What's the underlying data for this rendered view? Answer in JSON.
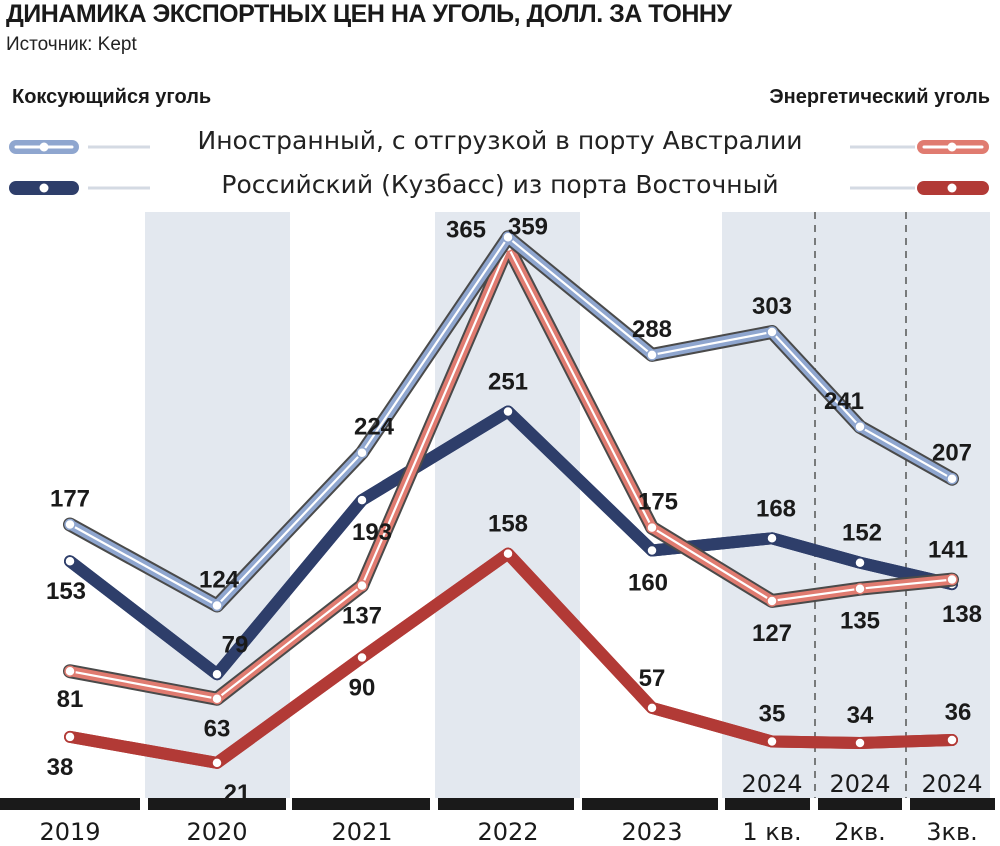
{
  "header": {
    "title": "ДИНАМИКА ЭКСПОРТНЫХ ЦЕН НА УГОЛЬ, ДОЛЛ. ЗА ТОННУ",
    "source": "Источник: Kept"
  },
  "legend": {
    "left_group": "Коксующийся уголь",
    "right_group": "Энергетический уголь",
    "rows": [
      {
        "label": "Иностранный, с отгрузкой в порту Австралии"
      },
      {
        "label": "Российский (Кузбасс) из порта Восточный"
      }
    ]
  },
  "colors": {
    "coking_foreign": "#8fa6cf",
    "coking_russian": "#2e3e6a",
    "thermal_foreign": "#e07b70",
    "thermal_russian": "#b23a36",
    "shade": "#e3e8ef",
    "axis": "#1a1a1a"
  },
  "chart_data": {
    "type": "line",
    "categories": [
      "2019",
      "2020",
      "2021",
      "2022",
      "2023",
      "2024 1 кв.",
      "2024 2кв.",
      "2024 3кв."
    ],
    "x_tick_labels": [
      {
        "line1": "",
        "line2": "2019"
      },
      {
        "line1": "",
        "line2": "2020"
      },
      {
        "line1": "",
        "line2": "2021"
      },
      {
        "line1": "",
        "line2": "2022"
      },
      {
        "line1": "",
        "line2": "2023"
      },
      {
        "line1": "2024",
        "line2": "1 кв."
      },
      {
        "line1": "2024",
        "line2": "2кв."
      },
      {
        "line1": "2024",
        "line2": "3кв."
      }
    ],
    "ylim": [
      0,
      380
    ],
    "series": [
      {
        "name": "Коксующийся уголь — Иностранный, с отгрузкой в порту Австралии",
        "key": "coking_foreign",
        "values": [
          177,
          124,
          224,
          365,
          288,
          303,
          241,
          207
        ]
      },
      {
        "name": "Коксующийся уголь — Российский (Кузбасс) из порта Восточный",
        "key": "coking_russian",
        "values": [
          153,
          79,
          193,
          251,
          160,
          168,
          152,
          138
        ]
      },
      {
        "name": "Энергетический уголь — Иностранный, с отгрузкой в порту Австралии",
        "key": "thermal_foreign",
        "values": [
          81,
          63,
          137,
          359,
          175,
          127,
          135,
          141
        ]
      },
      {
        "name": "Энергетический уголь — Российский (Кузбасс) из порта Восточный",
        "key": "thermal_russian",
        "values": [
          38,
          21,
          90,
          158,
          57,
          35,
          34,
          36
        ]
      }
    ],
    "data_labels": [
      {
        "series": "coking_foreign",
        "values": [
          "177",
          "124",
          "224",
          "365",
          "288",
          "303",
          "241",
          "207"
        ]
      },
      {
        "series": "coking_russian",
        "values": [
          "153",
          "79",
          "193",
          "251",
          "160",
          "168",
          "152",
          "138"
        ]
      },
      {
        "series": "thermal_foreign",
        "values": [
          "81",
          "63",
          "137",
          "359",
          "175",
          "127",
          "135",
          "141"
        ]
      },
      {
        "series": "thermal_russian",
        "values": [
          "38",
          "21",
          "90",
          "158",
          "57",
          "35",
          "34",
          "36"
        ]
      }
    ],
    "grid": false,
    "legend_placement": "top"
  }
}
